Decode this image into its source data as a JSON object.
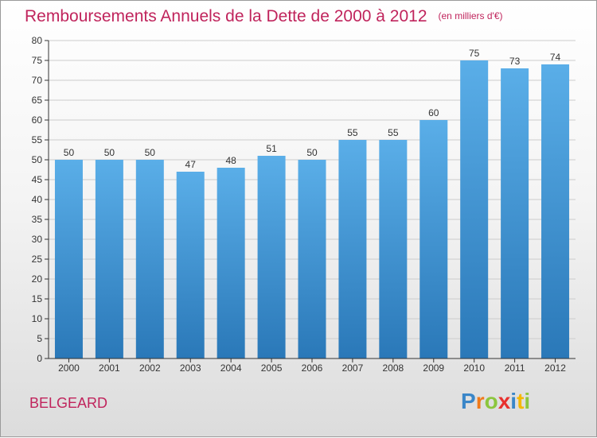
{
  "header": {
    "title": "Remboursements Annuels de la Dette de 2000 à 2012",
    "unit": "(en milliers d'€)"
  },
  "footer": {
    "town": "BELGEARD",
    "logo": [
      "P",
      "r",
      "o",
      "x",
      "i",
      "t",
      "i"
    ]
  },
  "colors": {
    "title": "#c0245c",
    "bar_top": "#5aaee8",
    "bar_bottom": "#2a78b8",
    "grid": "#cccccc"
  },
  "chart_data": {
    "type": "bar",
    "title": "Remboursements Annuels de la Dette de 2000 à 2012",
    "xlabel": "",
    "ylabel": "",
    "ylim": [
      0,
      80
    ],
    "yticks": [
      0,
      5,
      10,
      15,
      20,
      25,
      30,
      35,
      40,
      45,
      50,
      55,
      60,
      65,
      70,
      75,
      80
    ],
    "categories": [
      "2000",
      "2001",
      "2002",
      "2003",
      "2004",
      "2005",
      "2006",
      "2007",
      "2008",
      "2009",
      "2010",
      "2011",
      "2012"
    ],
    "values": [
      50,
      50,
      50,
      47,
      48,
      51,
      50,
      55,
      55,
      60,
      75,
      73,
      74
    ],
    "grid": true,
    "legend": "none"
  }
}
